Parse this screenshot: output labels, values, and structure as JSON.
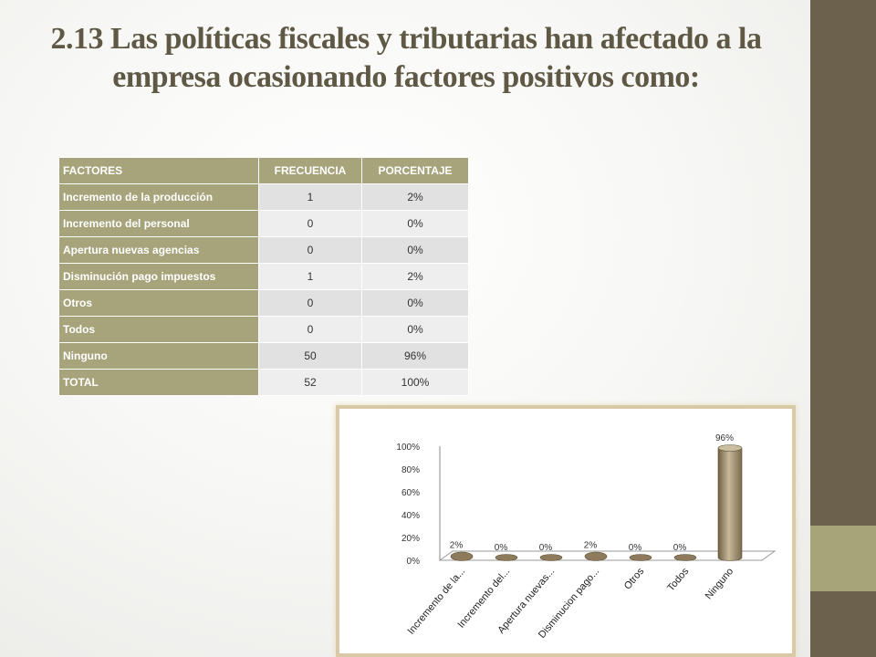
{
  "title": "2.13 Las políticas fiscales y tributarias han afectado a la empresa ocasionando factores positivos como:",
  "table": {
    "headers": [
      "FACTORES",
      "FRECUENCIA",
      "PORCENTAJE"
    ],
    "rows": [
      [
        "Incremento de la producción",
        "1",
        "2%"
      ],
      [
        "Incremento del personal",
        "0",
        "0%"
      ],
      [
        "Apertura nuevas agencias",
        "0",
        "0%"
      ],
      [
        "Disminución pago impuestos",
        "1",
        "2%"
      ],
      [
        "Otros",
        "0",
        "0%"
      ],
      [
        "Todos",
        "0",
        "0%"
      ],
      [
        "Ninguno",
        "50",
        "96%"
      ],
      [
        "TOTAL",
        "52",
        "100%"
      ]
    ]
  },
  "colors": {
    "band": "#6b614c",
    "accent": "#a8a47a",
    "header": "#a7a47c",
    "bar": "#8d7b5c"
  },
  "chart_data": {
    "type": "bar",
    "categories": [
      "Incremento de la...",
      "Incremento del...",
      "Apertura nuevas...",
      "Disminucion pago...",
      "Otros",
      "Todos",
      "Ninguno"
    ],
    "values": [
      2,
      0,
      0,
      2,
      0,
      0,
      96
    ],
    "data_labels": [
      "2%",
      "0%",
      "0%",
      "2%",
      "0%",
      "0%",
      "96%"
    ],
    "y_ticks": [
      "0%",
      "20%",
      "40%",
      "60%",
      "80%",
      "100%"
    ],
    "ylim": [
      0,
      100
    ],
    "style": "3d-cylinder",
    "grid": false,
    "legend": "none"
  }
}
